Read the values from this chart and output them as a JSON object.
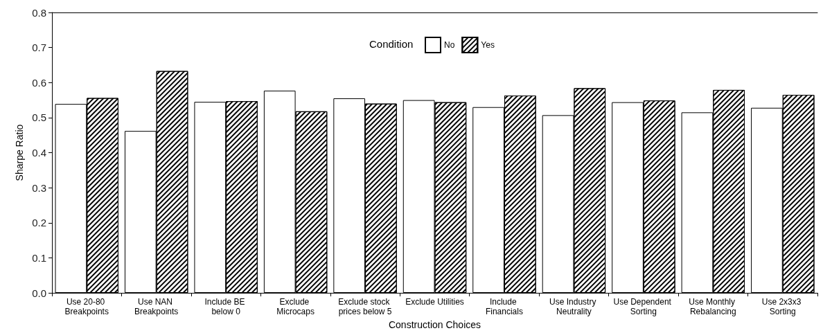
{
  "chart_data": {
    "type": "bar",
    "xlabel": "Construction Choices",
    "ylabel": "Sharpe Ratio",
    "legend_title": "Condition",
    "legend": "top",
    "categories": [
      "Use 20-80 Breakpoints",
      "Use NAN Breakpoints",
      "Include BE below 0",
      "Exclude Microcaps",
      "Exclude stock prices below 5",
      "Exclude Utilities",
      "Include Financials",
      "Use Industry Neutrality",
      "Use Dependent Sorting",
      "Use Monthly Rebalancing",
      "Use 2x3x3 Sorting"
    ],
    "series": [
      {
        "name": "No",
        "color": "#ffffff",
        "values": [
          0.539,
          0.462,
          0.545,
          0.577,
          0.555,
          0.55,
          0.53,
          0.507,
          0.544,
          0.515,
          0.528
        ]
      },
      {
        "name": "Yes",
        "color": "#000000",
        "values": [
          0.556,
          0.633,
          0.547,
          0.518,
          0.54,
          0.544,
          0.563,
          0.584,
          0.549,
          0.579,
          0.565
        ]
      }
    ],
    "ylim": [
      0,
      0.8
    ],
    "yticks": [
      {
        "value": 0,
        "label": "0.0"
      },
      {
        "value": 0.1,
        "label": "0.1"
      },
      {
        "value": 0.2,
        "label": "0.2"
      },
      {
        "value": 0.3,
        "label": "0.3"
      },
      {
        "value": 0.4,
        "label": "0.4"
      },
      {
        "value": 0.5,
        "label": "0.5"
      },
      {
        "value": 0.6,
        "label": "0.6"
      },
      {
        "value": 0.7,
        "label": "0.7"
      },
      {
        "value": 0.8,
        "label": "0.8"
      }
    ]
  }
}
